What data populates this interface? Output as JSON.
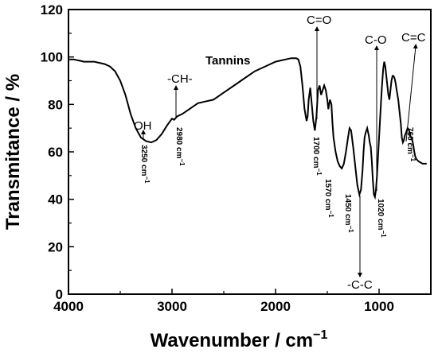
{
  "chart_data": {
    "type": "line",
    "title": "",
    "xlabel": "Wavenumber / cm",
    "xlabel_sup": "−1",
    "ylabel": "Transmitance / %",
    "xlim": [
      4000,
      500
    ],
    "ylim": [
      0,
      120
    ],
    "x_ticks": [
      "4000",
      "3000",
      "2000",
      "1000"
    ],
    "x_tick_values": [
      4000,
      3000,
      2000,
      1000
    ],
    "y_ticks": [
      "0",
      "20",
      "40",
      "60",
      "80",
      "100",
      "120"
    ],
    "y_tick_values": [
      0,
      20,
      40,
      60,
      80,
      100,
      120
    ],
    "grid": false,
    "series": [
      {
        "name": "Tannins",
        "color": "#000000",
        "x": [
          4000,
          3950,
          3900,
          3850,
          3800,
          3750,
          3700,
          3650,
          3600,
          3550,
          3500,
          3450,
          3400,
          3350,
          3300,
          3250,
          3200,
          3150,
          3100,
          3050,
          3000,
          2980,
          2950,
          2900,
          2850,
          2800,
          2750,
          2700,
          2600,
          2500,
          2400,
          2300,
          2200,
          2100,
          2000,
          1950,
          1900,
          1850,
          1800,
          1780,
          1760,
          1740,
          1720,
          1700,
          1690,
          1680,
          1665,
          1650,
          1635,
          1620,
          1605,
          1590,
          1575,
          1560,
          1545,
          1530,
          1515,
          1500,
          1490,
          1475,
          1460,
          1450,
          1440,
          1420,
          1400,
          1380,
          1360,
          1340,
          1320,
          1300,
          1285,
          1270,
          1250,
          1230,
          1210,
          1190,
          1175,
          1160,
          1150,
          1140,
          1130,
          1115,
          1100,
          1090,
          1080,
          1070,
          1060,
          1050,
          1040,
          1030,
          1020,
          1010,
          1000,
          990,
          980,
          970,
          960,
          950,
          940,
          930,
          920,
          910,
          900,
          890,
          880,
          870,
          860,
          850,
          840,
          830,
          815,
          800,
          790,
          780,
          770,
          760,
          750,
          740,
          725,
          710,
          700,
          690,
          680,
          670,
          660,
          650,
          640,
          620,
          600,
          580,
          560,
          540
        ],
        "y": [
          99,
          99,
          98.5,
          98,
          98,
          98,
          97.5,
          97,
          96,
          94,
          90,
          84,
          76,
          70,
          66,
          64.5,
          64,
          65,
          67.5,
          71,
          74,
          73.5,
          75,
          76,
          77.5,
          79,
          80.5,
          81,
          82,
          85,
          88,
          91,
          94,
          96,
          98,
          98.5,
          99,
          99.5,
          99.5,
          99,
          96,
          88,
          78,
          73,
          75,
          82,
          87,
          80,
          73,
          69,
          75,
          86,
          88,
          84,
          86,
          88,
          86,
          82,
          78,
          82,
          80,
          72,
          66,
          60,
          56,
          54,
          53,
          55,
          60,
          66,
          70,
          69,
          62,
          54,
          46,
          42,
          44,
          52,
          60,
          66,
          68,
          70,
          67,
          64,
          62,
          56,
          48,
          42,
          41,
          44,
          50,
          58,
          66,
          74,
          82,
          89,
          95,
          98,
          96,
          92,
          88,
          84,
          82,
          86,
          90,
          92,
          92,
          91,
          89,
          86,
          82,
          76,
          72,
          66,
          64,
          65,
          67,
          68,
          70,
          69,
          67,
          66,
          65,
          63,
          60,
          58,
          57,
          56,
          55.5,
          55,
          55,
          55
        ]
      }
    ],
    "annotations": {
      "series_label": "Tannins",
      "oh": "OH",
      "ch": "-CH-",
      "co_double": "C=O",
      "co_single": "C-O",
      "cc_double": "C=C",
      "cc_single": "-C-C"
    },
    "peak_labels": [
      {
        "value": "3250 cm",
        "sup": "−1",
        "at_x": 3250
      },
      {
        "value": "2980 cm",
        "sup": "−1",
        "at_x": 2980
      },
      {
        "value": "1700 cm",
        "sup": "−1",
        "at_x": 1700
      },
      {
        "value": "1570 cm",
        "sup": "−1",
        "at_x": 1570
      },
      {
        "value": "1450 cm",
        "sup": "−1",
        "at_x": 1450
      },
      {
        "value": "1020 cm",
        "sup": "−1",
        "at_x": 1020
      },
      {
        "value": "760 cm",
        "sup": "−1",
        "at_x": 760
      }
    ]
  }
}
